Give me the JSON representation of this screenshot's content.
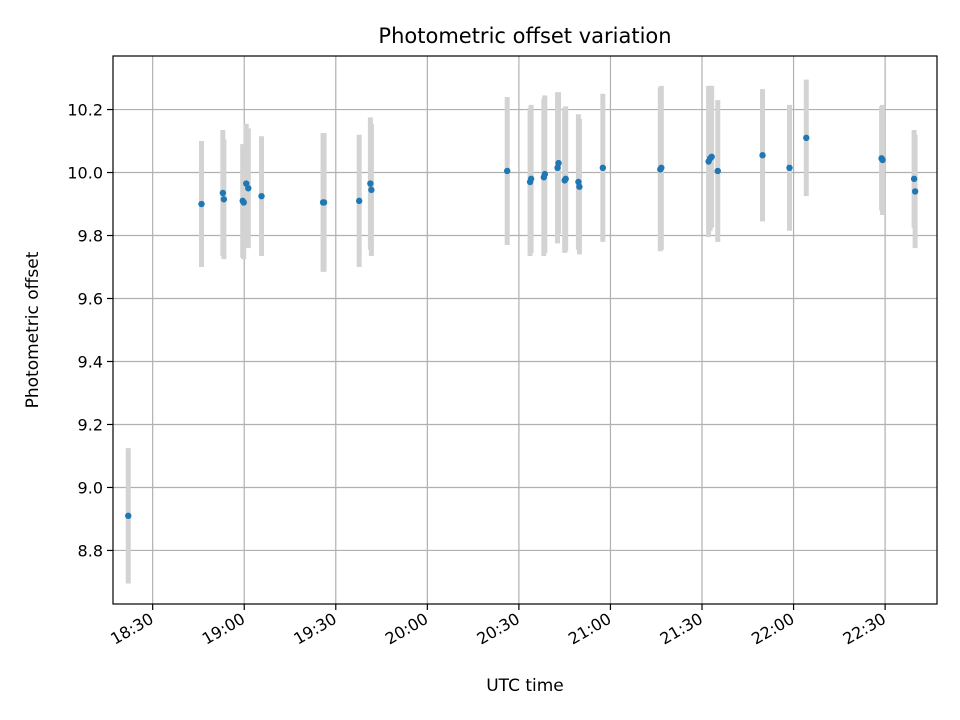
{
  "chart_data": {
    "type": "scatter",
    "title": "Photometric offset variation",
    "xlabel": "UTC time",
    "ylabel": "Photometric offset",
    "x_format": "HH:MM",
    "xlim": [
      "18:17",
      "22:47"
    ],
    "ylim": [
      8.63,
      10.37
    ],
    "x_ticks": [
      "18:30",
      "19:00",
      "19:30",
      "20:00",
      "20:30",
      "21:00",
      "21:30",
      "22:00",
      "22:30"
    ],
    "y_ticks": [
      8.8,
      9.0,
      9.2,
      9.4,
      9.6,
      9.8,
      10.0,
      10.2
    ],
    "y_tick_labels": [
      "8.8",
      "9.0",
      "9.2",
      "9.4",
      "9.6",
      "9.8",
      "10.0",
      "10.2"
    ],
    "grid": true,
    "colors": {
      "points": "#1f77b4",
      "error_bars": "#d3d3d3",
      "grid": "#b0b0b0"
    },
    "points": [
      {
        "x": "18:22:00",
        "y": 8.91,
        "err": 0.215
      },
      {
        "x": "18:46:00",
        "y": 9.9,
        "err": 0.2
      },
      {
        "x": "18:53:00",
        "y": 9.935,
        "err": 0.2
      },
      {
        "x": "18:53:20",
        "y": 9.915,
        "err": 0.19
      },
      {
        "x": "18:59:30",
        "y": 9.91,
        "err": 0.18
      },
      {
        "x": "18:59:50",
        "y": 9.905,
        "err": 0.18
      },
      {
        "x": "19:00:40",
        "y": 9.965,
        "err": 0.19
      },
      {
        "x": "19:01:20",
        "y": 9.95,
        "err": 0.19
      },
      {
        "x": "19:05:40",
        "y": 9.925,
        "err": 0.19
      },
      {
        "x": "19:25:50",
        "y": 9.905,
        "err": 0.22
      },
      {
        "x": "19:26:10",
        "y": 9.905,
        "err": 0.22
      },
      {
        "x": "19:37:40",
        "y": 9.91,
        "err": 0.21
      },
      {
        "x": "19:41:20",
        "y": 9.965,
        "err": 0.21
      },
      {
        "x": "19:41:40",
        "y": 9.945,
        "err": 0.21
      },
      {
        "x": "20:26:10",
        "y": 10.005,
        "err": 0.235
      },
      {
        "x": "20:33:40",
        "y": 9.97,
        "err": 0.235
      },
      {
        "x": "20:34:00",
        "y": 9.98,
        "err": 0.235
      },
      {
        "x": "20:38:10",
        "y": 9.985,
        "err": 0.25
      },
      {
        "x": "20:38:30",
        "y": 9.995,
        "err": 0.25
      },
      {
        "x": "20:42:40",
        "y": 10.015,
        "err": 0.24
      },
      {
        "x": "20:43:00",
        "y": 10.03,
        "err": 0.225
      },
      {
        "x": "20:45:00",
        "y": 9.975,
        "err": 0.23
      },
      {
        "x": "20:45:20",
        "y": 9.98,
        "err": 0.23
      },
      {
        "x": "20:49:30",
        "y": 9.97,
        "err": 0.215
      },
      {
        "x": "20:49:50",
        "y": 9.955,
        "err": 0.215
      },
      {
        "x": "20:57:30",
        "y": 10.015,
        "err": 0.235
      },
      {
        "x": "21:16:20",
        "y": 10.01,
        "err": 0.26
      },
      {
        "x": "21:16:40",
        "y": 10.015,
        "err": 0.26
      },
      {
        "x": "21:32:10",
        "y": 10.035,
        "err": 0.24
      },
      {
        "x": "21:32:40",
        "y": 10.045,
        "err": 0.23
      },
      {
        "x": "21:33:10",
        "y": 10.05,
        "err": 0.225
      },
      {
        "x": "21:35:10",
        "y": 10.005,
        "err": 0.225
      },
      {
        "x": "21:49:50",
        "y": 10.055,
        "err": 0.21
      },
      {
        "x": "21:58:40",
        "y": 10.015,
        "err": 0.2
      },
      {
        "x": "22:04:10",
        "y": 10.11,
        "err": 0.185
      },
      {
        "x": "22:28:50",
        "y": 10.045,
        "err": 0.165
      },
      {
        "x": "22:29:10",
        "y": 10.04,
        "err": 0.175
      },
      {
        "x": "22:39:30",
        "y": 9.98,
        "err": 0.155
      },
      {
        "x": "22:39:50",
        "y": 9.94,
        "err": 0.18
      }
    ]
  }
}
